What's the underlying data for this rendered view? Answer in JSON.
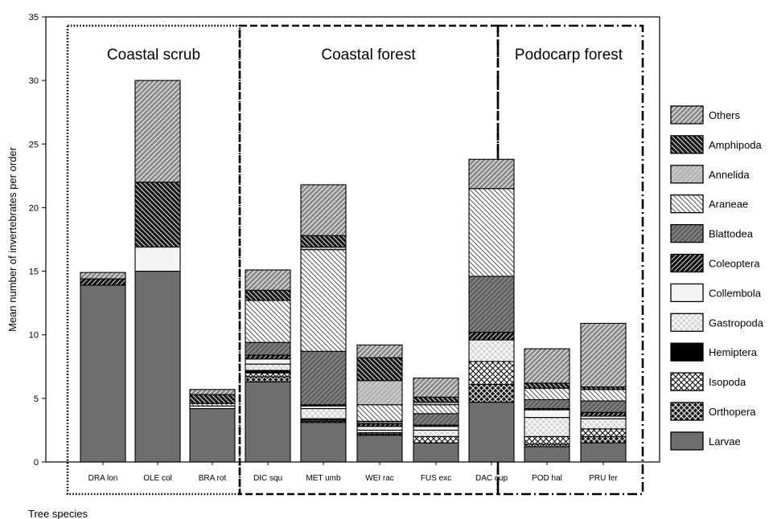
{
  "chart_data": {
    "type": "bar",
    "stacked": true,
    "ylabel": "Mean number of invertebrates per order",
    "xlabel": "Tree species",
    "ylim": [
      0,
      35
    ],
    "yticks": [
      0,
      5,
      10,
      15,
      20,
      25,
      30,
      35
    ],
    "grid": false,
    "legend_position": "right",
    "categories": [
      "DRA lon",
      "OLE col",
      "BRA rot",
      "DIC squ",
      "MET umb",
      "WEI rac",
      "FUS exc",
      "DAC cup",
      "POD hal",
      "PRU fer"
    ],
    "regions": [
      {
        "label": "Coastal scrub",
        "categories": [
          "DRA lon",
          "OLE col",
          "BRA rot"
        ],
        "line_style": "dotted"
      },
      {
        "label": "Coastal forest",
        "categories": [
          "DIC squ",
          "MET umb",
          "WEI rac",
          "FUS exc",
          "DAC cup"
        ],
        "line_style": "dashed"
      },
      {
        "label": "Podocarp forest",
        "categories": [
          "POD hal",
          "PRU fer"
        ],
        "line_style": "dash-dot"
      }
    ],
    "series": [
      {
        "name": "Larvae",
        "values": [
          13.9,
          15.0,
          4.2,
          6.3,
          3.1,
          2.1,
          1.5,
          4.7,
          1.2,
          1.5
        ]
      },
      {
        "name": "Orthopera",
        "values": [
          0.0,
          0.0,
          0.0,
          0.4,
          0.1,
          0.1,
          0.0,
          1.4,
          0.2,
          0.5
        ]
      },
      {
        "name": "Isopoda",
        "values": [
          0.0,
          0.0,
          0.0,
          0.3,
          0.1,
          0.1,
          0.5,
          1.8,
          0.6,
          0.6
        ]
      },
      {
        "name": "Hemiptera",
        "values": [
          0.0,
          0.0,
          0.0,
          0.2,
          0.1,
          0.0,
          0.0,
          0.0,
          0.0,
          0.0
        ]
      },
      {
        "name": "Gastropoda",
        "values": [
          0.0,
          0.0,
          0.0,
          0.5,
          0.8,
          0.2,
          0.5,
          1.7,
          1.5,
          0.8
        ]
      },
      {
        "name": "Collembola",
        "values": [
          0.0,
          1.9,
          0.2,
          0.4,
          0.2,
          0.3,
          0.3,
          0.0,
          0.6,
          0.2
        ]
      },
      {
        "name": "Coleoptera",
        "values": [
          0.5,
          0.0,
          0.0,
          0.3,
          0.1,
          0.2,
          0.1,
          0.6,
          0.1,
          0.3
        ]
      },
      {
        "name": "Blattodea",
        "values": [
          0.0,
          0.0,
          0.0,
          1.0,
          4.2,
          0.2,
          0.9,
          4.4,
          0.7,
          0.9
        ]
      },
      {
        "name": "Araneae",
        "values": [
          0.0,
          0.0,
          0.2,
          3.3,
          8.0,
          1.3,
          0.7,
          6.9,
          0.9,
          0.9
        ]
      },
      {
        "name": "Annelida",
        "values": [
          0.0,
          0.0,
          0.0,
          0.0,
          0.2,
          1.9,
          0.2,
          0.0,
          0.0,
          0.0
        ]
      },
      {
        "name": "Amphipoda",
        "values": [
          0.0,
          5.1,
          0.7,
          0.8,
          0.9,
          1.8,
          0.4,
          0.0,
          0.4,
          0.2
        ]
      },
      {
        "name": "Others",
        "values": [
          0.5,
          8.0,
          0.4,
          1.6,
          4.0,
          1.0,
          1.5,
          2.3,
          2.7,
          5.0
        ]
      }
    ],
    "legend_order": [
      "Others",
      "Amphipoda",
      "Annelida",
      "Araneae",
      "Blattodea",
      "Coleoptera",
      "Collembola",
      "Gastropoda",
      "Hemiptera",
      "Isopoda",
      "Orthopera",
      "Larvae"
    ],
    "series_styles": {
      "Larvae": {
        "fill": "#6e6e6e",
        "pattern": "solid"
      },
      "Orthopera": {
        "fill": "#1a1a1a",
        "pattern": "crosshatch-dark"
      },
      "Isopoda": {
        "fill": "#ffffff",
        "pattern": "crosshatch"
      },
      "Hemiptera": {
        "fill": "#000000",
        "pattern": "solid"
      },
      "Gastropoda": {
        "fill": "#d4d4d4",
        "pattern": "crosshatch-light"
      },
      "Collembola": {
        "fill": "#f4f4f4",
        "pattern": "solid"
      },
      "Coleoptera": {
        "fill": "#111111",
        "pattern": "diagonal-light"
      },
      "Blattodea": {
        "fill": "#7d7d7d",
        "pattern": "diagonal-dark"
      },
      "Araneae": {
        "fill": "#ffffff",
        "pattern": "diagonal-back"
      },
      "Annelida": {
        "fill": "#c8c8c8",
        "pattern": "diagonal-grey"
      },
      "Amphipoda": {
        "fill": "#1a1a1a",
        "pattern": "diagonal-back-light"
      },
      "Others": {
        "fill": "#8a8a8a",
        "pattern": "diagonal-light"
      }
    }
  }
}
